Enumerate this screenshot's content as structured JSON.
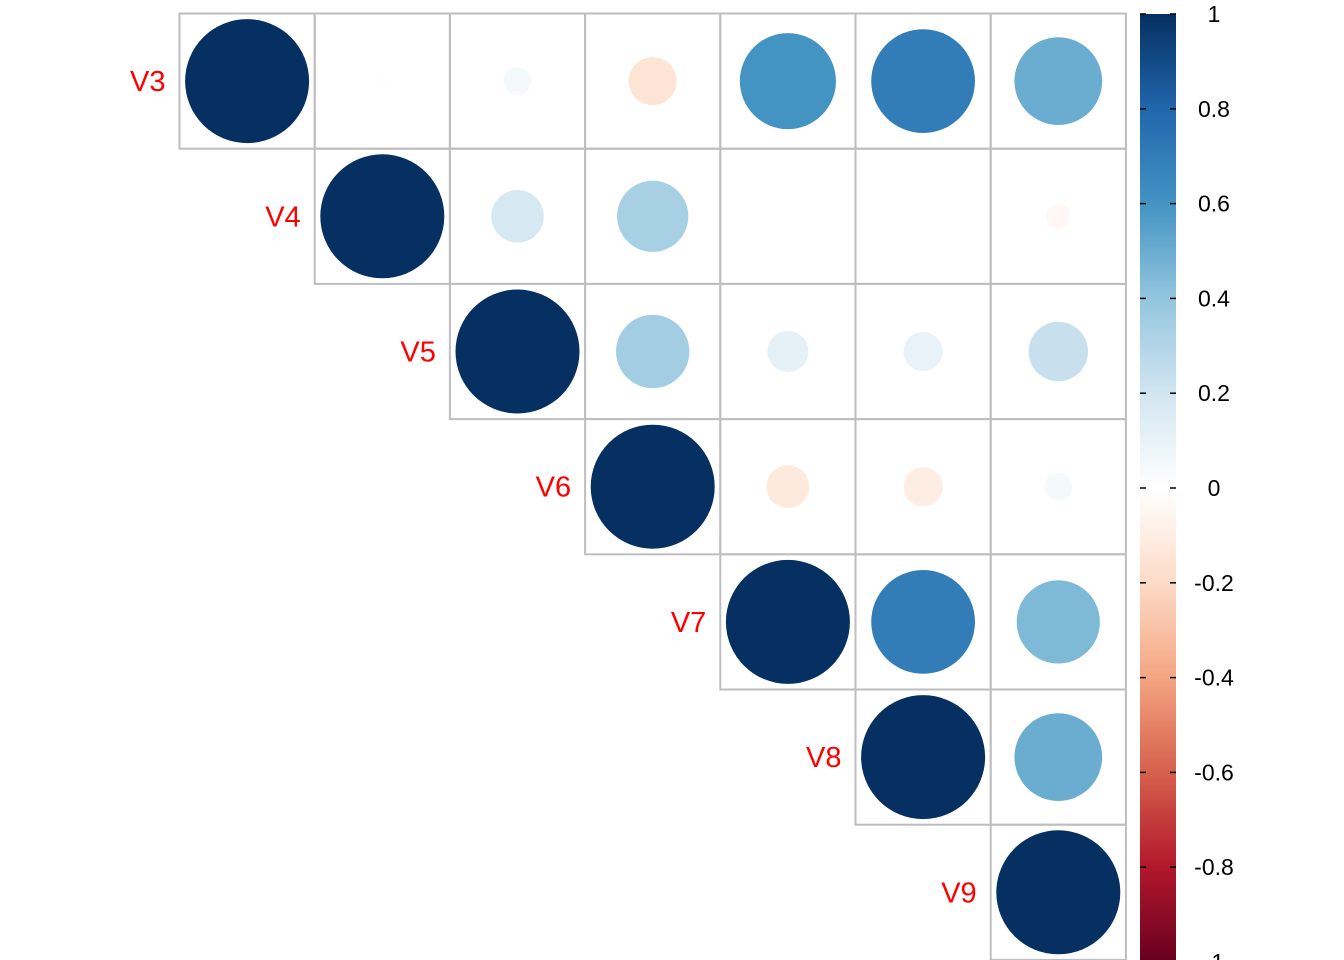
{
  "chart_data": {
    "type": "heatmap",
    "style": "corrplot upper-triangle circles",
    "variables": [
      "V3",
      "V4",
      "V5",
      "V6",
      "V7",
      "V8",
      "V9"
    ],
    "matrix": [
      [
        1.0,
        0.01,
        0.05,
        -0.15,
        0.6,
        0.7,
        0.5
      ],
      [
        0.01,
        1.0,
        0.18,
        0.33,
        0.0,
        0.0,
        -0.04
      ],
      [
        0.05,
        0.18,
        1.0,
        0.35,
        0.11,
        0.1,
        0.23
      ],
      [
        -0.15,
        0.33,
        0.35,
        1.0,
        -0.12,
        -0.1,
        0.05
      ],
      [
        0.6,
        0.0,
        0.11,
        -0.12,
        1.0,
        0.7,
        0.45
      ],
      [
        0.7,
        0.0,
        0.1,
        -0.1,
        0.7,
        1.0,
        0.5
      ],
      [
        0.5,
        -0.04,
        0.23,
        0.05,
        0.45,
        0.5,
        1.0
      ]
    ],
    "color_scale": {
      "range": [
        -1,
        1
      ],
      "tick_labels": [
        "1",
        "0.8",
        "0.6",
        "0.4",
        "0.2",
        "0",
        "-0.2",
        "-0.4",
        "-0.6",
        "-0.8",
        "-1"
      ],
      "stops": [
        "#67001F",
        "#B2182B",
        "#D6604D",
        "#F4A582",
        "#FDDBC7",
        "#FFFFFF",
        "#D1E5F0",
        "#92C5DE",
        "#4393C3",
        "#2166AC",
        "#053061"
      ]
    },
    "label_color": "#FF0000",
    "grid_color": "#BEBEBE"
  }
}
